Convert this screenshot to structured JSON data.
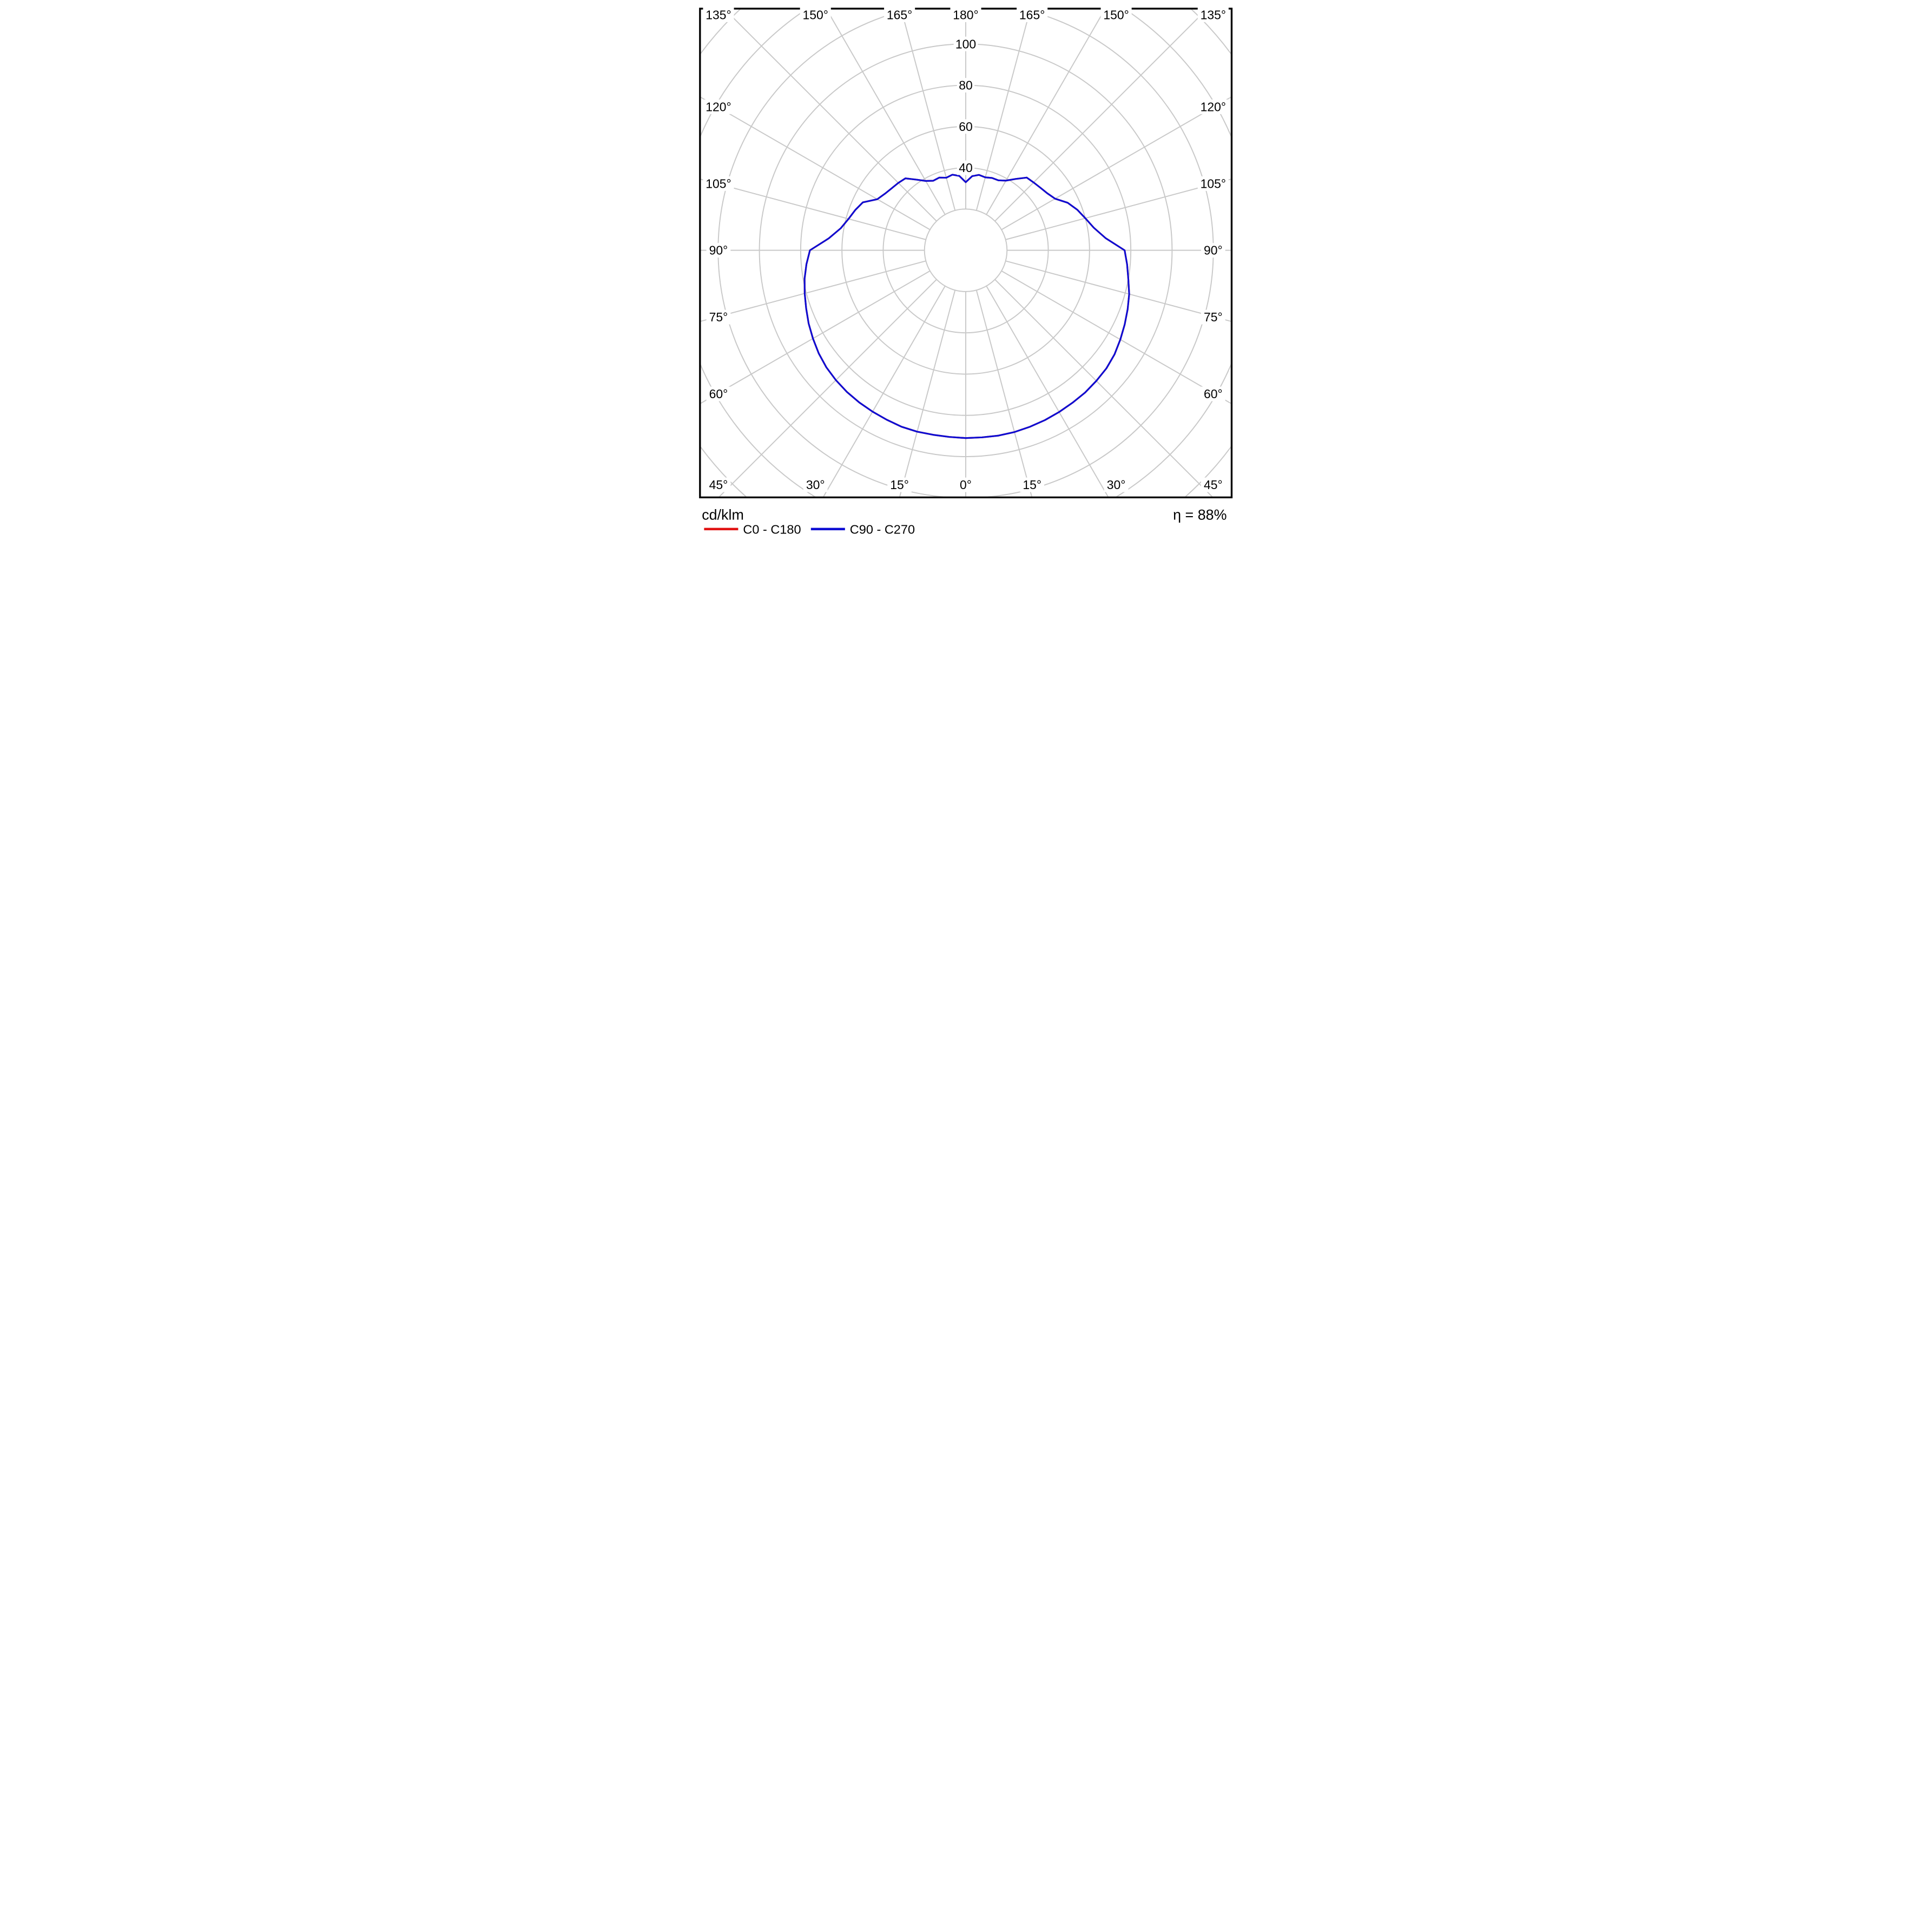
{
  "chart_data": {
    "type": "line",
    "subtype": "polar-photometric-luminous-intensity",
    "title": "cd/klm",
    "efficiency_label": "η = 88%",
    "radial_unit": "cd/klm",
    "radial_tick_labels": [
      "40",
      "60",
      "80",
      "100"
    ],
    "radial_tick_values": [
      40,
      60,
      80,
      100
    ],
    "radial_grid_values": [
      20,
      40,
      60,
      80,
      100,
      120,
      140,
      160
    ],
    "radial_axis_range": [
      0,
      100
    ],
    "angle_grid_step_deg": 15,
    "angle_labels_top": [
      "135°",
      "150°",
      "165°",
      "180°",
      "165°",
      "150°",
      "135°"
    ],
    "angle_labels_bottom": [
      "45°",
      "30°",
      "15°",
      "0°",
      "15°",
      "30°",
      "45°"
    ],
    "angle_labels_left": [
      "120°",
      "105°",
      "90°",
      "75°",
      "60°"
    ],
    "angle_labels_right": [
      "120°",
      "105°",
      "90°",
      "75°",
      "60°"
    ],
    "gamma_deg": [
      0,
      5,
      10,
      15,
      20,
      25,
      30,
      35,
      40,
      45,
      50,
      55,
      60,
      65,
      70,
      75,
      80,
      85,
      90,
      95,
      100,
      105,
      110,
      115,
      120,
      125,
      130,
      135,
      140,
      145,
      150,
      155,
      160,
      165,
      170,
      175,
      180
    ],
    "intensity_right_half_cd_per_klm": [
      91,
      91,
      91.2,
      91.2,
      91,
      90.8,
      90.5,
      90.2,
      90,
      89.5,
      89,
      88,
      86.5,
      85,
      83.5,
      82,
      80,
      78.5,
      77,
      68,
      63,
      60,
      57.5,
      54.5,
      50,
      48.2,
      47.2,
      46.5,
      46,
      42.2,
      39,
      37.4,
      37.3,
      36.6,
      37.1,
      36.1,
      33
    ],
    "intensity_left_half_cd_per_klm": [
      91,
      90.8,
      90.8,
      91,
      91,
      90.6,
      90.3,
      90,
      89.6,
      89,
      88.2,
      87,
      85.5,
      84,
      82.3,
      80.8,
      79.3,
      77.5,
      75.5,
      66.6,
      61.5,
      58.8,
      57,
      55,
      49.5,
      47.8,
      46.8,
      46.2,
      45.5,
      41.8,
      38.8,
      37.2,
      37.5,
      36.4,
      37.2,
      36.2,
      33
    ],
    "series": [
      {
        "name": "C0 - C180",
        "color": "#e11212",
        "note": "coincides with C90 - C270 curve (hidden beneath blue)"
      },
      {
        "name": "C90 - C270",
        "color": "#0d0dd3"
      }
    ],
    "grid_color": "#c9c9c9",
    "frame_color": "#000000",
    "legend_position": "bottom"
  }
}
